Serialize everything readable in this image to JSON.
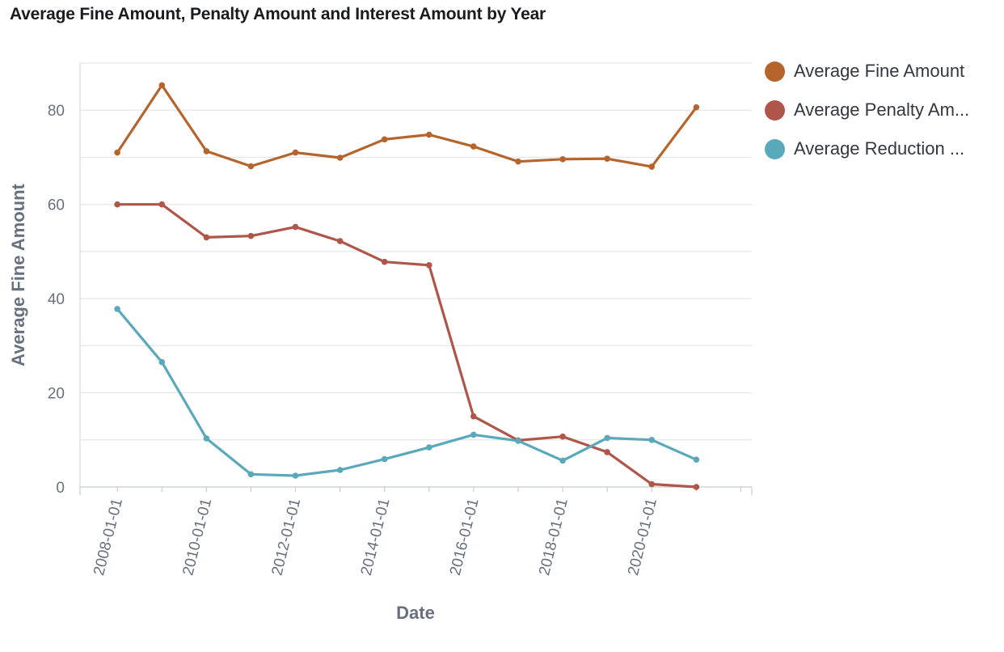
{
  "chart_data": {
    "type": "line",
    "title": "Average Fine Amount, Penalty Amount and Interest Amount by Year",
    "xlabel": "Date",
    "ylabel": "Average Fine Amount",
    "x_tick_labels": [
      "2008-01-01",
      "2010-01-01",
      "2012-01-01",
      "2014-01-01",
      "2016-01-01",
      "2018-01-01",
      "2020-01-01"
    ],
    "y_ticks": [
      0,
      20,
      40,
      60,
      80
    ],
    "ylim": [
      0,
      90
    ],
    "xlim": [
      "2007-03-01",
      "2022-04-01"
    ],
    "grid": true,
    "legend_position": "right",
    "x": [
      "2008-01-01",
      "2009-01-01",
      "2010-01-01",
      "2011-01-01",
      "2012-01-01",
      "2013-01-01",
      "2014-01-01",
      "2015-01-01",
      "2016-01-01",
      "2017-01-01",
      "2018-01-01",
      "2019-01-01",
      "2020-01-01",
      "2021-01-01"
    ],
    "series": [
      {
        "name": "Average Fine Amount",
        "color": "#b5652c",
        "values": [
          71,
          85.3,
          71.3,
          68.1,
          71,
          69.9,
          73.8,
          74.8,
          72.3,
          69.1,
          69.6,
          69.7,
          68,
          80.6
        ]
      },
      {
        "name": "Average Penalty Amount",
        "legend_label": "Average Penalty Am...",
        "color": "#b0554a",
        "values": [
          60,
          60,
          53,
          53.3,
          55.2,
          52.2,
          47.8,
          47.1,
          15,
          9.9,
          10.7,
          7.4,
          0.6,
          0
        ]
      },
      {
        "name": "Average Reduction Amount",
        "legend_label": "Average Reduction ...",
        "color": "#5aa9bb",
        "values": [
          37.8,
          26.5,
          10.3,
          2.7,
          2.4,
          3.6,
          5.9,
          8.4,
          11.1,
          9.8,
          5.6,
          10.4,
          10,
          5.8
        ]
      }
    ]
  }
}
